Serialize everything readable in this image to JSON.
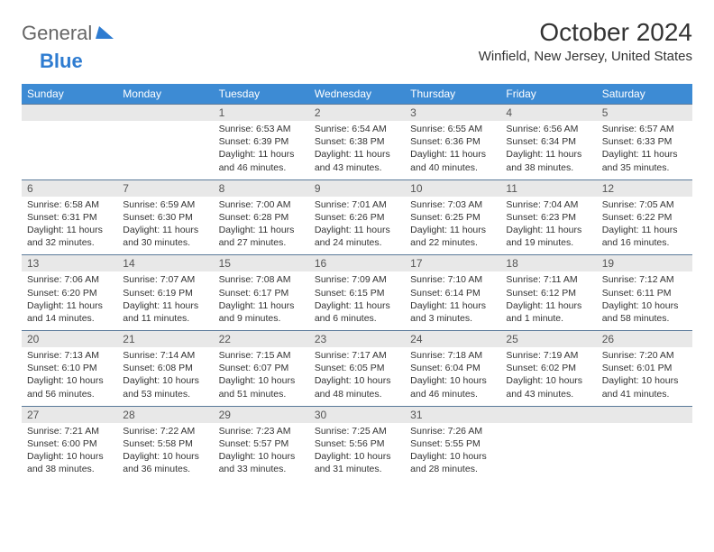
{
  "brand": {
    "part1": "General",
    "part2": "Blue"
  },
  "title": "October 2024",
  "location": "Winfield, New Jersey, United States",
  "colors": {
    "header_bg": "#3d8bd4",
    "header_text": "#ffffff",
    "daynum_bg": "#e8e8e8",
    "daynum_border": "#5a7a9a",
    "body_text": "#333333",
    "brand_gray": "#666666",
    "brand_blue": "#2e7cd1"
  },
  "dow": [
    "Sunday",
    "Monday",
    "Tuesday",
    "Wednesday",
    "Thursday",
    "Friday",
    "Saturday"
  ],
  "weeks": [
    [
      {
        "n": "",
        "sr": "",
        "ss": "",
        "dl": ""
      },
      {
        "n": "",
        "sr": "",
        "ss": "",
        "dl": ""
      },
      {
        "n": "1",
        "sr": "Sunrise: 6:53 AM",
        "ss": "Sunset: 6:39 PM",
        "dl": "Daylight: 11 hours and 46 minutes."
      },
      {
        "n": "2",
        "sr": "Sunrise: 6:54 AM",
        "ss": "Sunset: 6:38 PM",
        "dl": "Daylight: 11 hours and 43 minutes."
      },
      {
        "n": "3",
        "sr": "Sunrise: 6:55 AM",
        "ss": "Sunset: 6:36 PM",
        "dl": "Daylight: 11 hours and 40 minutes."
      },
      {
        "n": "4",
        "sr": "Sunrise: 6:56 AM",
        "ss": "Sunset: 6:34 PM",
        "dl": "Daylight: 11 hours and 38 minutes."
      },
      {
        "n": "5",
        "sr": "Sunrise: 6:57 AM",
        "ss": "Sunset: 6:33 PM",
        "dl": "Daylight: 11 hours and 35 minutes."
      }
    ],
    [
      {
        "n": "6",
        "sr": "Sunrise: 6:58 AM",
        "ss": "Sunset: 6:31 PM",
        "dl": "Daylight: 11 hours and 32 minutes."
      },
      {
        "n": "7",
        "sr": "Sunrise: 6:59 AM",
        "ss": "Sunset: 6:30 PM",
        "dl": "Daylight: 11 hours and 30 minutes."
      },
      {
        "n": "8",
        "sr": "Sunrise: 7:00 AM",
        "ss": "Sunset: 6:28 PM",
        "dl": "Daylight: 11 hours and 27 minutes."
      },
      {
        "n": "9",
        "sr": "Sunrise: 7:01 AM",
        "ss": "Sunset: 6:26 PM",
        "dl": "Daylight: 11 hours and 24 minutes."
      },
      {
        "n": "10",
        "sr": "Sunrise: 7:03 AM",
        "ss": "Sunset: 6:25 PM",
        "dl": "Daylight: 11 hours and 22 minutes."
      },
      {
        "n": "11",
        "sr": "Sunrise: 7:04 AM",
        "ss": "Sunset: 6:23 PM",
        "dl": "Daylight: 11 hours and 19 minutes."
      },
      {
        "n": "12",
        "sr": "Sunrise: 7:05 AM",
        "ss": "Sunset: 6:22 PM",
        "dl": "Daylight: 11 hours and 16 minutes."
      }
    ],
    [
      {
        "n": "13",
        "sr": "Sunrise: 7:06 AM",
        "ss": "Sunset: 6:20 PM",
        "dl": "Daylight: 11 hours and 14 minutes."
      },
      {
        "n": "14",
        "sr": "Sunrise: 7:07 AM",
        "ss": "Sunset: 6:19 PM",
        "dl": "Daylight: 11 hours and 11 minutes."
      },
      {
        "n": "15",
        "sr": "Sunrise: 7:08 AM",
        "ss": "Sunset: 6:17 PM",
        "dl": "Daylight: 11 hours and 9 minutes."
      },
      {
        "n": "16",
        "sr": "Sunrise: 7:09 AM",
        "ss": "Sunset: 6:15 PM",
        "dl": "Daylight: 11 hours and 6 minutes."
      },
      {
        "n": "17",
        "sr": "Sunrise: 7:10 AM",
        "ss": "Sunset: 6:14 PM",
        "dl": "Daylight: 11 hours and 3 minutes."
      },
      {
        "n": "18",
        "sr": "Sunrise: 7:11 AM",
        "ss": "Sunset: 6:12 PM",
        "dl": "Daylight: 11 hours and 1 minute."
      },
      {
        "n": "19",
        "sr": "Sunrise: 7:12 AM",
        "ss": "Sunset: 6:11 PM",
        "dl": "Daylight: 10 hours and 58 minutes."
      }
    ],
    [
      {
        "n": "20",
        "sr": "Sunrise: 7:13 AM",
        "ss": "Sunset: 6:10 PM",
        "dl": "Daylight: 10 hours and 56 minutes."
      },
      {
        "n": "21",
        "sr": "Sunrise: 7:14 AM",
        "ss": "Sunset: 6:08 PM",
        "dl": "Daylight: 10 hours and 53 minutes."
      },
      {
        "n": "22",
        "sr": "Sunrise: 7:15 AM",
        "ss": "Sunset: 6:07 PM",
        "dl": "Daylight: 10 hours and 51 minutes."
      },
      {
        "n": "23",
        "sr": "Sunrise: 7:17 AM",
        "ss": "Sunset: 6:05 PM",
        "dl": "Daylight: 10 hours and 48 minutes."
      },
      {
        "n": "24",
        "sr": "Sunrise: 7:18 AM",
        "ss": "Sunset: 6:04 PM",
        "dl": "Daylight: 10 hours and 46 minutes."
      },
      {
        "n": "25",
        "sr": "Sunrise: 7:19 AM",
        "ss": "Sunset: 6:02 PM",
        "dl": "Daylight: 10 hours and 43 minutes."
      },
      {
        "n": "26",
        "sr": "Sunrise: 7:20 AM",
        "ss": "Sunset: 6:01 PM",
        "dl": "Daylight: 10 hours and 41 minutes."
      }
    ],
    [
      {
        "n": "27",
        "sr": "Sunrise: 7:21 AM",
        "ss": "Sunset: 6:00 PM",
        "dl": "Daylight: 10 hours and 38 minutes."
      },
      {
        "n": "28",
        "sr": "Sunrise: 7:22 AM",
        "ss": "Sunset: 5:58 PM",
        "dl": "Daylight: 10 hours and 36 minutes."
      },
      {
        "n": "29",
        "sr": "Sunrise: 7:23 AM",
        "ss": "Sunset: 5:57 PM",
        "dl": "Daylight: 10 hours and 33 minutes."
      },
      {
        "n": "30",
        "sr": "Sunrise: 7:25 AM",
        "ss": "Sunset: 5:56 PM",
        "dl": "Daylight: 10 hours and 31 minutes."
      },
      {
        "n": "31",
        "sr": "Sunrise: 7:26 AM",
        "ss": "Sunset: 5:55 PM",
        "dl": "Daylight: 10 hours and 28 minutes."
      },
      {
        "n": "",
        "sr": "",
        "ss": "",
        "dl": ""
      },
      {
        "n": "",
        "sr": "",
        "ss": "",
        "dl": ""
      }
    ]
  ]
}
